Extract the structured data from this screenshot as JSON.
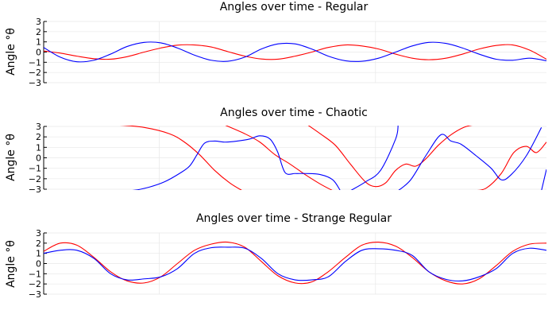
{
  "chart_data": [
    {
      "type": "line",
      "title": "Angles over time - Regular",
      "ylabel": "Angle °θ",
      "ylim": [
        -3,
        3
      ],
      "yticks": [
        3,
        2,
        1,
        0,
        -1,
        -2,
        -3
      ],
      "xlim": [
        0,
        10
      ],
      "x_tick_labels_shown": false,
      "grid": true,
      "legend": "none",
      "series": [
        {
          "color": "#ff0000",
          "x": [
            0,
            0.33,
            0.66,
            1,
            1.33,
            1.66,
            2,
            2.33,
            2.66,
            3,
            3.33,
            3.66,
            4,
            4.33,
            4.66,
            5,
            5.33,
            5.66,
            6,
            6.33,
            6.66,
            7,
            7.33,
            7.66,
            8,
            8.33,
            8.66,
            9,
            9.33,
            9.66,
            10
          ],
          "y": [
            0.1,
            -0.1,
            -0.4,
            -0.65,
            -0.7,
            -0.45,
            0,
            0.4,
            0.68,
            0.7,
            0.5,
            0.05,
            -0.4,
            -0.68,
            -0.7,
            -0.4,
            0,
            0.45,
            0.7,
            0.6,
            0.3,
            -0.2,
            -0.6,
            -0.75,
            -0.6,
            -0.2,
            0.3,
            0.65,
            0.7,
            0.2,
            -0.7
          ]
        },
        {
          "color": "#0000ff",
          "x": [
            0,
            0.33,
            0.66,
            1,
            1.33,
            1.66,
            2,
            2.33,
            2.66,
            3,
            3.33,
            3.66,
            4,
            4.33,
            4.66,
            5,
            5.33,
            5.66,
            6,
            6.33,
            6.66,
            7,
            7.33,
            7.66,
            8,
            8.33,
            8.66,
            9,
            9.33,
            9.66,
            10
          ],
          "y": [
            0.45,
            -0.5,
            -0.95,
            -0.8,
            -0.2,
            0.55,
            0.95,
            0.9,
            0.4,
            -0.3,
            -0.8,
            -0.9,
            -0.5,
            0.3,
            0.8,
            0.8,
            0.3,
            -0.4,
            -0.85,
            -0.9,
            -0.6,
            0,
            0.6,
            0.95,
            0.85,
            0.4,
            -0.2,
            -0.7,
            -0.8,
            -0.6,
            -0.85
          ]
        }
      ]
    },
    {
      "type": "line",
      "title": "Angles over time - Chaotic",
      "ylabel": "Angle °θ",
      "ylim": [
        -3,
        3
      ],
      "yticks": [
        3,
        2,
        1,
        0,
        -1,
        -2,
        -3
      ],
      "xlim": [
        0,
        10
      ],
      "x_tick_labels_shown": false,
      "grid": true,
      "legend": "none",
      "series": [
        {
          "color": "#ff0000",
          "segments": [
            {
              "x": [
                0,
                0.5,
                1,
                1.5,
                2,
                2.5,
                2.8,
                3.1,
                3.4,
                3.7,
                3.95
              ],
              "y": [
                3.14,
                3.14,
                3.14,
                3.12,
                2.9,
                2.3,
                1.5,
                0.3,
                -1.2,
                -2.4,
                -3.14
              ]
            },
            {
              "x": [
                3.6,
                4,
                4.3,
                4.6,
                4.9,
                5.2,
                5.5,
                5.75
              ],
              "y": [
                3.14,
                2.3,
                1.5,
                0.3,
                -0.6,
                -1.6,
                -2.5,
                -3.14
              ]
            },
            {
              "x": [
                5.25,
                5.5,
                5.8,
                6.1,
                6.4,
                6.6,
                6.8,
                7,
                7.2,
                7.4,
                7.6,
                7.85,
                8.1,
                8.35,
                8.55
              ],
              "y": [
                3.14,
                2.3,
                1.2,
                -0.6,
                -2.3,
                -2.75,
                -2.4,
                -1.2,
                -0.6,
                -0.8,
                -0.1,
                1.2,
                2.2,
                2.9,
                3.14
              ]
            },
            {
              "x": [
                8.55,
                8.8,
                9.1,
                9.35,
                9.6,
                9.8,
                10
              ],
              "y": [
                -3.14,
                -2.9,
                -1.5,
                0.5,
                1.1,
                0.5,
                1.5
              ]
            }
          ]
        },
        {
          "color": "#0000ff",
          "segments": [
            {
              "x": [
                0,
                1,
                1.5,
                1.8,
                2.1,
                2.4,
                2.7,
                2.9,
                3.05,
                3.2,
                3.4,
                3.6,
                3.85,
                4.1,
                4.3,
                4.5,
                4.65,
                4.8,
                5,
                5.2,
                5.5,
                5.75,
                5.9
              ],
              "y": [
                -3.14,
                -3.14,
                -3.14,
                -3.1,
                -2.8,
                -2.3,
                -1.5,
                -0.8,
                0.3,
                1.4,
                1.6,
                1.5,
                1.6,
                1.8,
                2.1,
                1.8,
                0.6,
                -1.4,
                -1.5,
                -1.5,
                -1.6,
                -2.1,
                -3.14
              ]
            },
            {
              "x": [
                6.1,
                6.35
              ],
              "y": [
                3.14,
                3.14
              ]
            },
            {
              "x": [
                6.1,
                6.4,
                6.7,
                7,
                7.05
              ],
              "y": [
                -3.14,
                -2.3,
                -1.2,
                1.8,
                3.14
              ]
            },
            {
              "x": [
                7.05,
                7.3,
                7.6,
                7.9,
                8.1,
                8.3,
                8.6,
                8.9,
                9.1,
                9.3,
                9.6,
                9.9
              ],
              "y": [
                -3.14,
                -2.1,
                0.2,
                2.2,
                1.6,
                1.3,
                0.2,
                -1.0,
                -2.1,
                -1.6,
                0.2,
                2.9
              ]
            },
            {
              "x": [
                9.9,
                10
              ],
              "y": [
                -3.14,
                -1.1
              ]
            }
          ]
        }
      ]
    },
    {
      "type": "line",
      "title": "Angles over time - Strange Regular",
      "ylabel": "Angle °θ",
      "ylim": [
        -3,
        3
      ],
      "yticks": [
        3,
        2,
        1,
        0,
        -1,
        -2,
        -3
      ],
      "xlim": [
        0,
        10
      ],
      "x_tick_labels_shown": false,
      "grid": true,
      "legend": "none",
      "series": [
        {
          "color": "#ff0000",
          "x": [
            0,
            0.33,
            0.66,
            1,
            1.33,
            1.66,
            2,
            2.33,
            2.66,
            3,
            3.33,
            3.66,
            4,
            4.33,
            4.66,
            5,
            5.33,
            5.66,
            6,
            6.33,
            6.66,
            7,
            7.33,
            7.66,
            8,
            8.33,
            8.66,
            9,
            9.33,
            9.66,
            10
          ],
          "y": [
            1.2,
            2.0,
            1.8,
            0.6,
            -0.8,
            -1.7,
            -1.9,
            -1.3,
            0,
            1.3,
            1.9,
            2.1,
            1.6,
            0.2,
            -1.2,
            -1.9,
            -1.8,
            -0.8,
            0.6,
            1.8,
            2.1,
            1.7,
            0.6,
            -0.8,
            -1.7,
            -2.0,
            -1.5,
            -0.2,
            1.2,
            1.9,
            2.0
          ]
        },
        {
          "color": "#0000ff",
          "x": [
            0,
            0.33,
            0.66,
            1,
            1.33,
            1.66,
            2,
            2.33,
            2.66,
            3,
            3.33,
            3.66,
            4,
            4.33,
            4.66,
            5,
            5.33,
            5.66,
            6,
            6.33,
            6.66,
            7,
            7.33,
            7.66,
            8,
            8.33,
            8.66,
            9,
            9.33,
            9.66,
            10
          ],
          "y": [
            1.0,
            1.3,
            1.3,
            0.5,
            -1.0,
            -1.6,
            -1.5,
            -1.3,
            -0.5,
            1.0,
            1.55,
            1.6,
            1.5,
            0.5,
            -1.0,
            -1.6,
            -1.6,
            -1.3,
            0.2,
            1.3,
            1.45,
            1.3,
            0.8,
            -0.8,
            -1.55,
            -1.7,
            -1.3,
            -0.5,
            1.0,
            1.5,
            1.3
          ]
        }
      ]
    }
  ]
}
